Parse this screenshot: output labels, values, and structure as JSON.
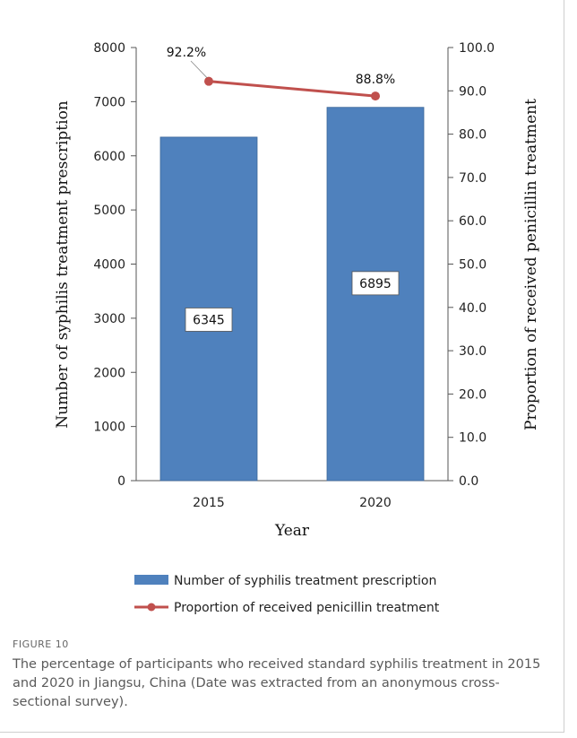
{
  "caption": {
    "label": "FIGURE 10",
    "text": "The percentage of participants who received standard syphilis treatment in 2015 and 2020 in Jiangsu, China (Date was extracted from an anonymous cross-sectional survey)."
  },
  "chart_data": {
    "type": "bar",
    "categories": [
      "2015",
      "2020"
    ],
    "xlabel": "Year",
    "ylabel": "Number of syphilis treatment prescription",
    "y2label": "Proportion of received penicillin treatment",
    "ylim": [
      0,
      8000
    ],
    "yticks": [
      "0",
      "1000",
      "2000",
      "3000",
      "4000",
      "5000",
      "6000",
      "7000",
      "8000"
    ],
    "y2lim": [
      0,
      100
    ],
    "y2ticks": [
      "0.0",
      "10.0",
      "20.0",
      "30.0",
      "40.0",
      "50.0",
      "60.0",
      "70.0",
      "80.0",
      "90.0",
      "100.0"
    ],
    "series": [
      {
        "name": "Number of syphilis treatment prescription",
        "kind": "bar",
        "axis": "left",
        "values": [
          6345,
          6895
        ],
        "labels": [
          "6345",
          "6895"
        ],
        "color": "#4f81bd"
      },
      {
        "name": "Proportion of received penicillin treatment",
        "kind": "line",
        "axis": "right",
        "values": [
          92.2,
          88.8
        ],
        "labels": [
          "92.2%",
          "88.8%"
        ],
        "color": "#c0504d"
      }
    ],
    "legend_position": "bottom",
    "grid": false
  }
}
